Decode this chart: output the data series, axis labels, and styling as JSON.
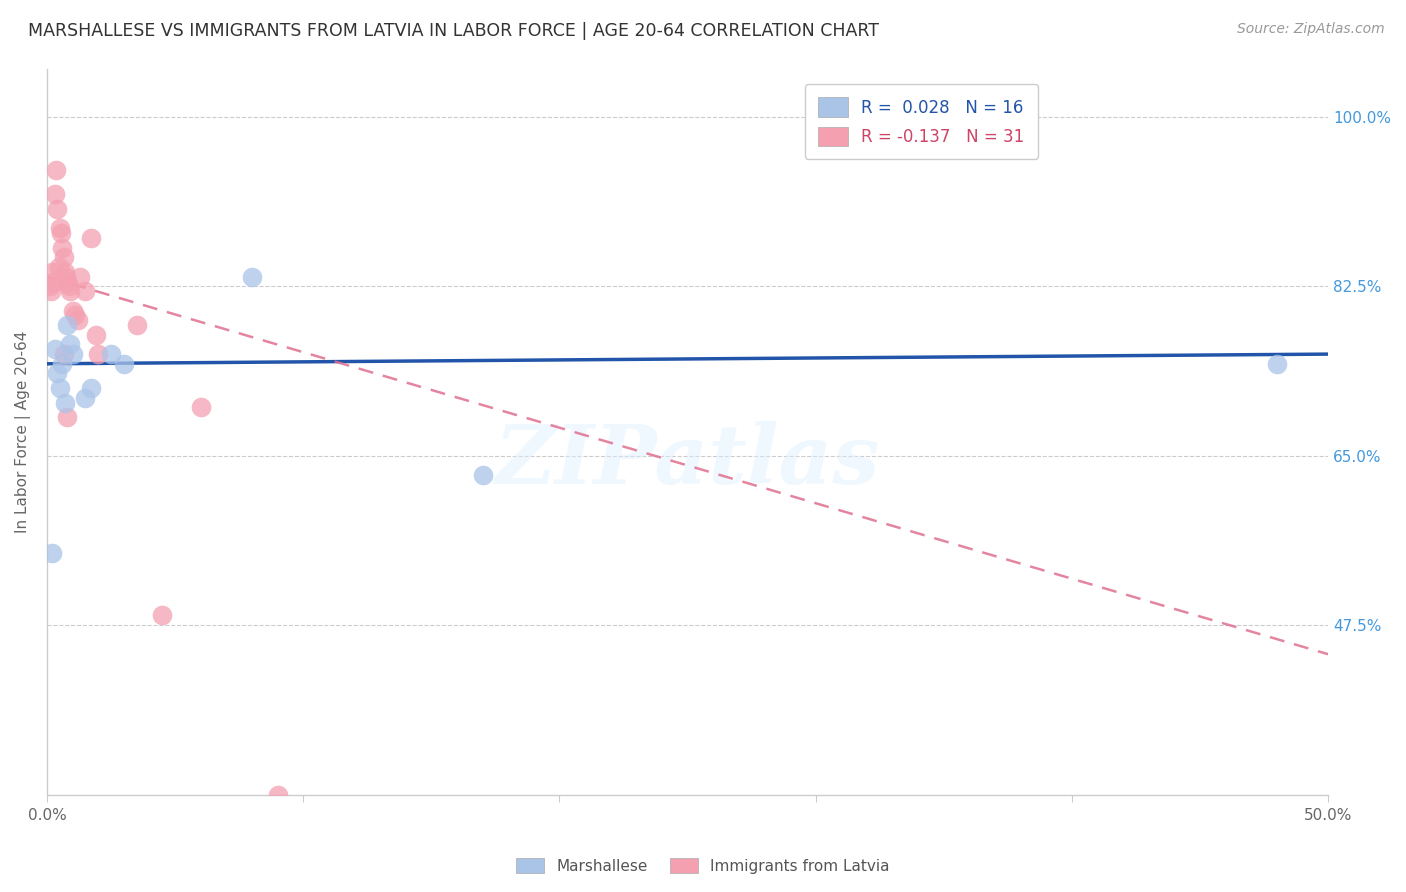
{
  "title": "MARSHALLESE VS IMMIGRANTS FROM LATVIA IN LABOR FORCE | AGE 20-64 CORRELATION CHART",
  "source": "Source: ZipAtlas.com",
  "ylabel": "In Labor Force | Age 20-64",
  "yticks": [
    47.5,
    65.0,
    82.5,
    100.0
  ],
  "ytick_labels": [
    "47.5%",
    "65.0%",
    "82.5%",
    "100.0%"
  ],
  "xlim": [
    0.0,
    50.0
  ],
  "ylim": [
    30.0,
    105.0
  ],
  "watermark": "ZIPatlas",
  "legend_blue_label": "Marshallese",
  "legend_pink_label": "Immigrants from Latvia",
  "blue_r_text": "R =  0.028",
  "blue_n_text": "N = 16",
  "pink_r_text": "R = -0.137",
  "pink_n_text": "N = 31",
  "blue_color": "#aac4e8",
  "pink_color": "#f4a0b0",
  "blue_line_color": "#2255aa",
  "pink_line_color": "#e07090",
  "blue_r_color": "#2255aa",
  "pink_r_color": "#cc4466",
  "blue_scatter_x": [
    0.3,
    0.4,
    0.5,
    0.6,
    0.7,
    0.8,
    0.9,
    1.0,
    1.5,
    1.7,
    2.5,
    3.0,
    8.0,
    17.0,
    48.0,
    0.2
  ],
  "blue_scatter_y": [
    76.0,
    73.5,
    72.0,
    74.5,
    70.5,
    78.5,
    76.5,
    75.5,
    71.0,
    72.0,
    75.5,
    74.5,
    83.5,
    63.0,
    74.5,
    55.0
  ],
  "pink_scatter_x": [
    0.1,
    0.2,
    0.3,
    0.35,
    0.4,
    0.5,
    0.55,
    0.6,
    0.65,
    0.7,
    0.75,
    0.8,
    0.85,
    0.9,
    1.0,
    1.1,
    1.2,
    1.3,
    1.5,
    1.7,
    1.9,
    2.0,
    3.5,
    4.5,
    6.0,
    9.0,
    0.15,
    0.25,
    0.45,
    0.65,
    0.8
  ],
  "pink_scatter_y": [
    82.5,
    84.0,
    92.0,
    94.5,
    90.5,
    88.5,
    88.0,
    86.5,
    85.5,
    84.0,
    83.5,
    83.0,
    82.5,
    82.0,
    80.0,
    79.5,
    79.0,
    83.5,
    82.0,
    87.5,
    77.5,
    75.5,
    78.5,
    48.5,
    70.0,
    30.0,
    82.0,
    83.0,
    84.5,
    75.5,
    69.0
  ],
  "blue_line_x0": 0.0,
  "blue_line_x1": 50.0,
  "blue_line_y0": 74.5,
  "blue_line_y1": 75.5,
  "pink_line_x0": 0.0,
  "pink_line_x1": 50.0,
  "pink_line_y0": 83.5,
  "pink_line_y1": 44.5
}
